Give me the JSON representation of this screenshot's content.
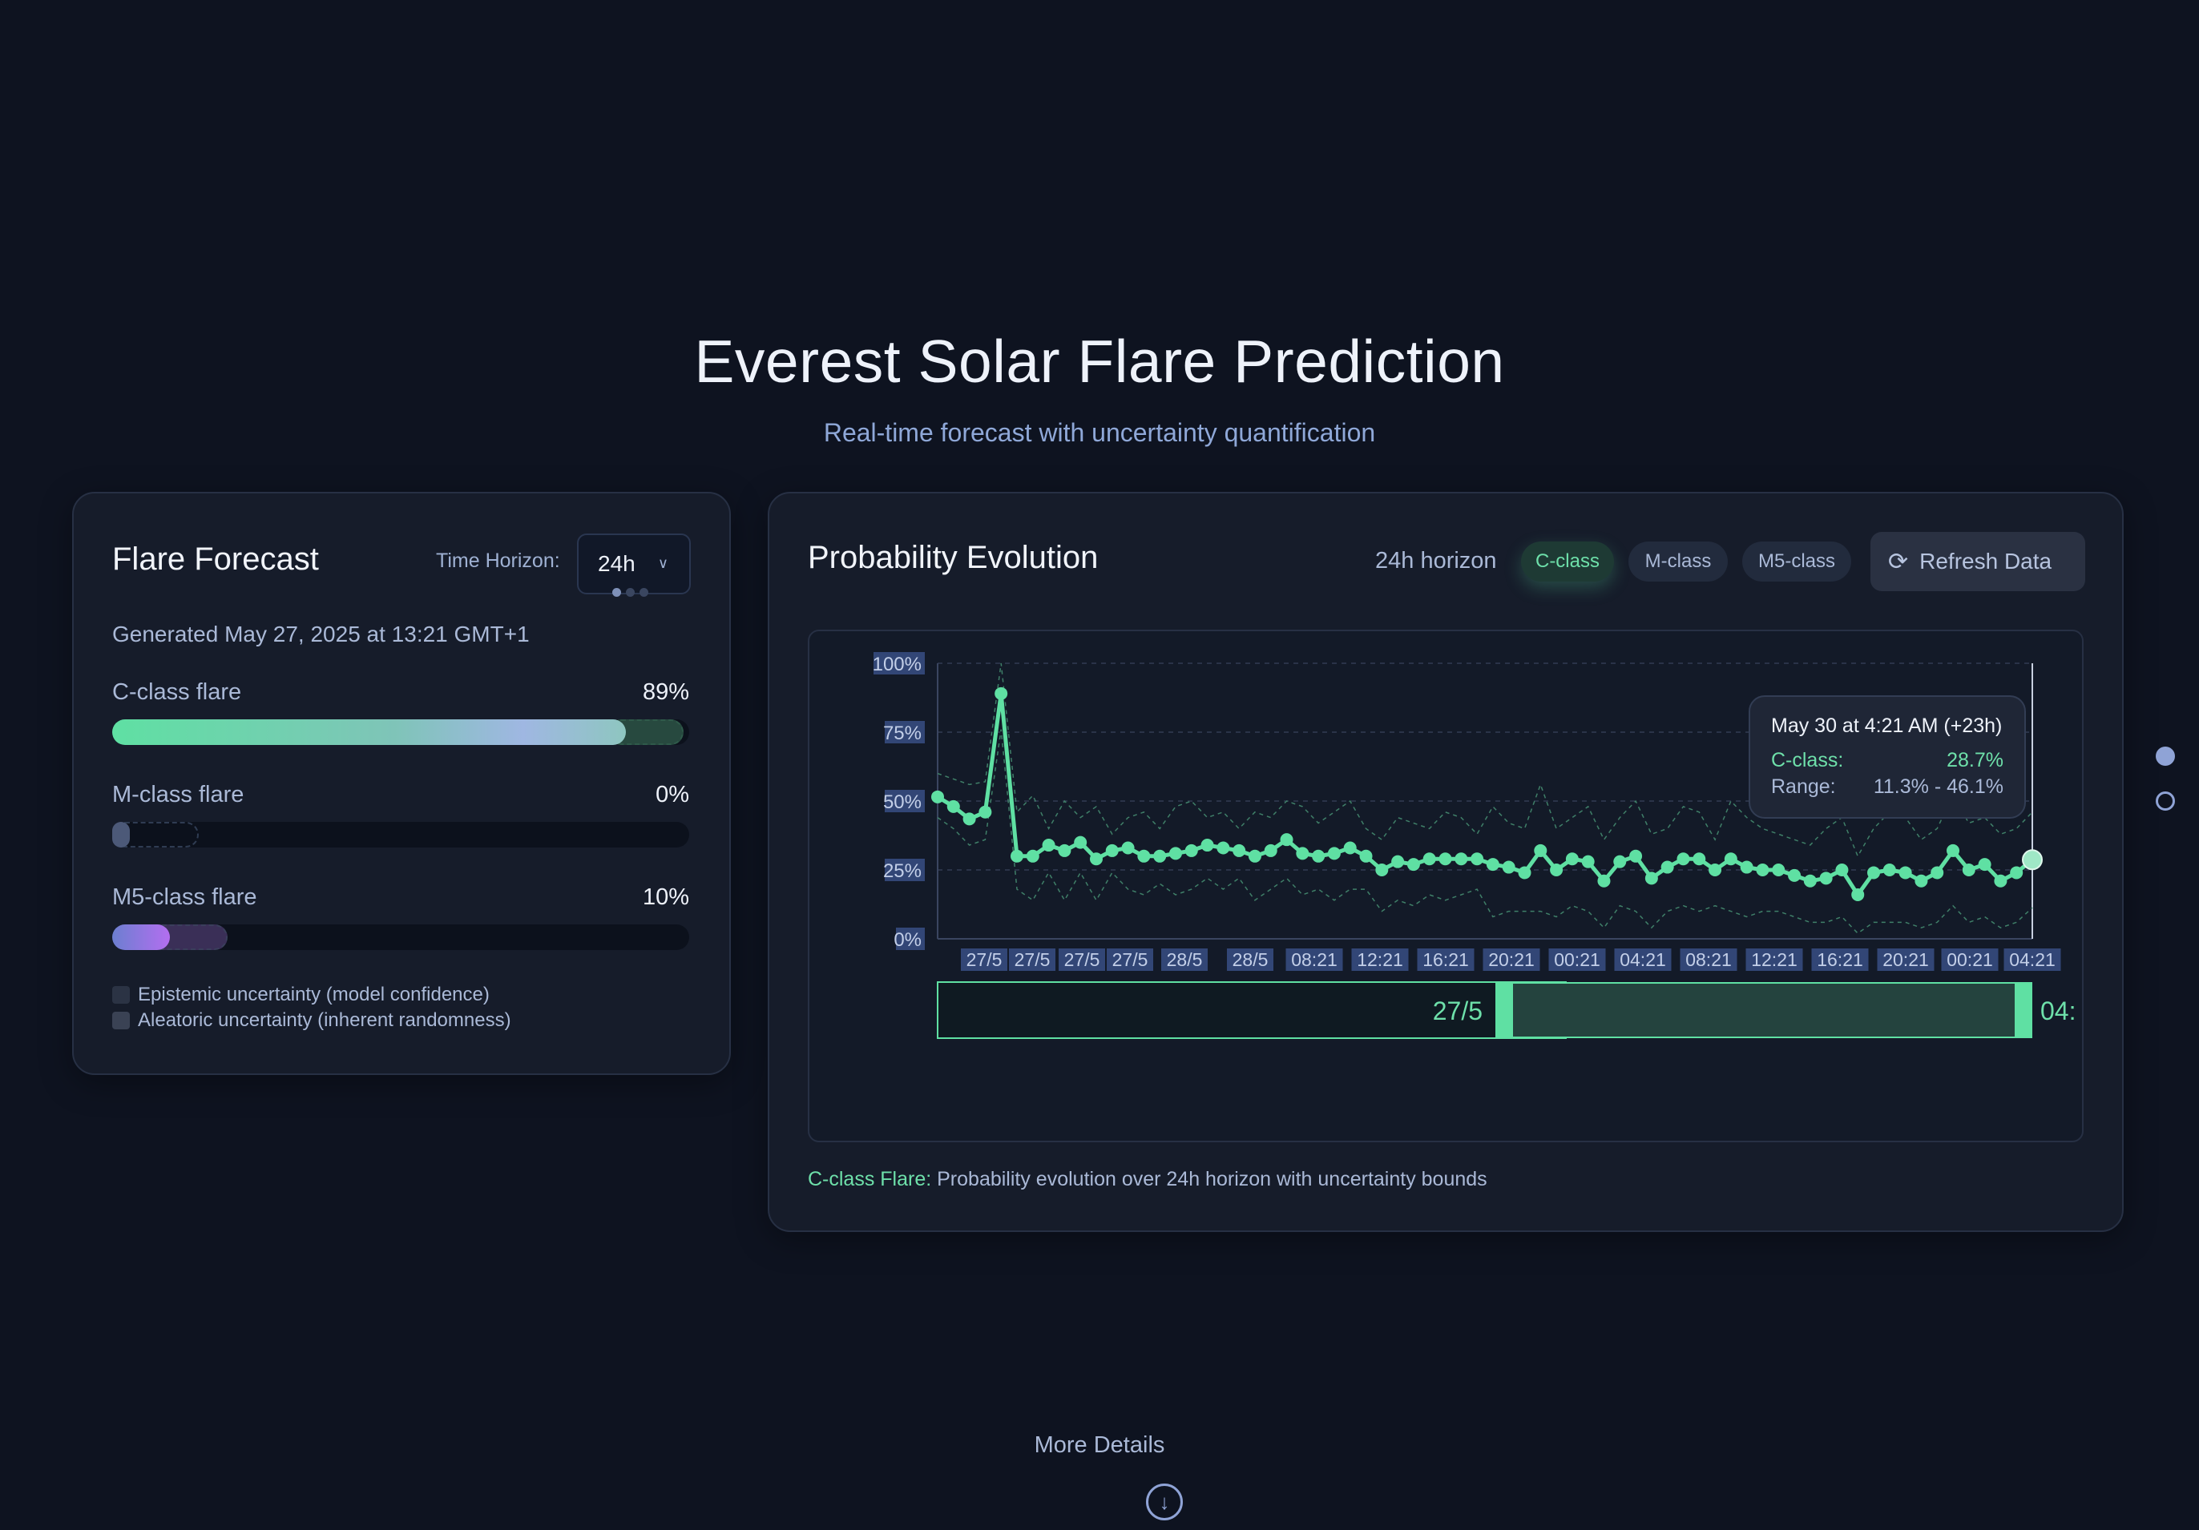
{
  "hero": {
    "title": "Everest Solar Flare Prediction",
    "subtitle": "Real-time forecast with uncertainty quantification"
  },
  "forecast": {
    "title": "Flare Forecast",
    "time_horizon_label": "Time Horizon:",
    "time_horizon_value": "24h",
    "generated": "Generated May 27, 2025 at 13:21 GMT+1",
    "flares": [
      {
        "label": "C-class flare",
        "pct_text": "89%",
        "value": 89,
        "uncertainty": [
          86,
          99
        ],
        "color": "#5fe0a3"
      },
      {
        "label": "M-class flare",
        "pct_text": "0%",
        "value": 0,
        "uncertainty": [
          0,
          15
        ],
        "color": "#4c5978"
      },
      {
        "label": "M5-class flare",
        "pct_text": "10%",
        "value": 10,
        "uncertainty": [
          5,
          20
        ],
        "color": "#b36ef0"
      }
    ],
    "legend": [
      {
        "label": "Epistemic uncertainty (model confidence)",
        "color": "#2b3344"
      },
      {
        "label": "Aleatoric uncertainty (inherent randomness)",
        "color": "#3a4254"
      }
    ]
  },
  "evolution": {
    "title": "Probability Evolution",
    "horizon_label": "24h horizon",
    "filters": [
      {
        "label": "C-class",
        "active": true
      },
      {
        "label": "M-class",
        "active": false
      },
      {
        "label": "M5-class",
        "active": false
      }
    ],
    "refresh_label": "Refresh Data",
    "tooltip": {
      "title": "May 30 at 4:21 AM (+23h)",
      "series_label": "C-class:",
      "series_value": "28.7%",
      "range_label": "Range:",
      "range_value": "11.3% - 46.1%"
    },
    "brush": {
      "start_label": "27/5",
      "end_label": "04:"
    },
    "caption_highlight": "C-class Flare:",
    "caption_text": " Probability evolution over 24h horizon with uncertainty bounds"
  },
  "chart_data": {
    "type": "line",
    "title": "",
    "xlabel": "",
    "ylabel": "",
    "ylim": [
      0,
      100
    ],
    "yticks": [
      "0%",
      "25%",
      "50%",
      "75%",
      "100%"
    ],
    "xticks": [
      "27/5",
      "27/5",
      "27/5",
      "27/5",
      "28/5",
      "28/5",
      "08:21",
      "12:21",
      "16:21",
      "20:21",
      "00:21",
      "04:21",
      "08:21",
      "12:21",
      "16:21",
      "20:21",
      "00:21",
      "04:21"
    ],
    "grid": true,
    "series": [
      {
        "name": "C-class",
        "color": "#5fe0a3",
        "values": [
          51.5,
          48,
          43.5,
          46,
          89,
          30,
          30,
          34,
          32,
          35,
          29,
          32,
          33,
          30,
          30,
          31,
          32,
          34,
          33,
          32,
          30,
          32,
          36,
          31,
          30,
          31,
          33,
          30,
          25,
          28,
          27,
          29,
          29,
          29,
          29,
          27,
          26,
          24,
          32,
          25,
          29,
          28,
          21,
          28,
          30,
          22,
          26,
          29,
          29,
          25,
          29,
          26,
          25,
          25,
          23,
          21,
          22,
          25,
          16,
          24,
          25,
          24,
          21,
          24,
          32,
          25,
          27,
          21,
          24,
          28.7
        ],
        "upper": [
          60,
          58,
          56,
          57,
          100,
          46,
          52,
          40,
          50,
          44,
          48,
          38,
          44,
          46,
          40,
          48,
          50,
          44,
          46,
          40,
          46,
          44,
          50,
          48,
          42,
          46,
          50,
          40,
          36,
          44,
          42,
          40,
          46,
          44,
          38,
          48,
          42,
          40,
          56,
          40,
          44,
          48,
          36,
          44,
          50,
          38,
          40,
          48,
          46,
          36,
          50,
          44,
          40,
          38,
          36,
          34,
          40,
          44,
          30,
          40,
          46,
          44,
          36,
          40,
          52,
          42,
          44,
          38,
          40,
          46
        ],
        "lower": [
          44,
          40,
          34,
          36,
          76,
          18,
          14,
          24,
          14,
          24,
          14,
          24,
          18,
          16,
          20,
          16,
          18,
          22,
          18,
          22,
          14,
          18,
          22,
          16,
          18,
          14,
          18,
          18,
          10,
          14,
          12,
          16,
          14,
          16,
          18,
          8,
          10,
          10,
          10,
          8,
          12,
          10,
          4,
          12,
          10,
          4,
          10,
          12,
          10,
          12,
          10,
          8,
          10,
          10,
          8,
          6,
          6,
          8,
          2,
          6,
          6,
          6,
          4,
          6,
          12,
          6,
          8,
          4,
          6,
          11.3
        ]
      }
    ]
  }
}
